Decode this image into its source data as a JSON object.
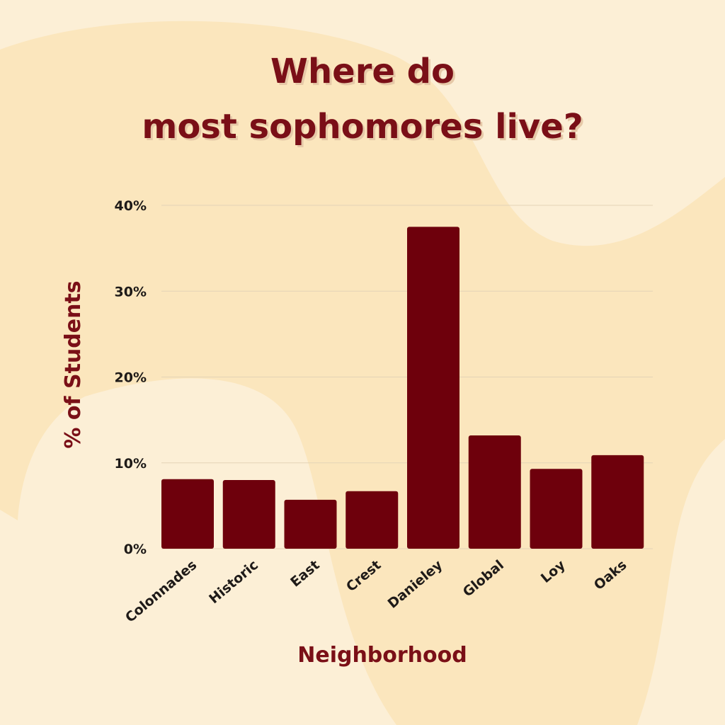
{
  "title_lines": [
    "Where do",
    "most sophomores live?"
  ],
  "colors": {
    "background": "#fcefd6",
    "blob": "#fbe6bd",
    "bar": "#6e000c",
    "title": "#7a0f17",
    "title_shadow": "#e6c9a8",
    "grid": "#e3d3b6",
    "text": "#1e1a18"
  },
  "chart_data": {
    "type": "bar",
    "title": "Where do most sophomores live?",
    "xlabel": "Neighborhood",
    "ylabel": "% of Students",
    "categories": [
      "Colonnades",
      "Historic",
      "East",
      "Crest",
      "Danieley",
      "Global",
      "Loy",
      "Oaks"
    ],
    "values": [
      8.1,
      8.0,
      5.7,
      6.7,
      37.5,
      13.2,
      9.3,
      10.9
    ],
    "ylim": [
      0,
      40
    ],
    "yticks": [
      0,
      10,
      20,
      30,
      40
    ],
    "ytick_labels": [
      "0%",
      "10%",
      "20%",
      "30%",
      "40%"
    ],
    "grid": true,
    "legend": "none"
  }
}
